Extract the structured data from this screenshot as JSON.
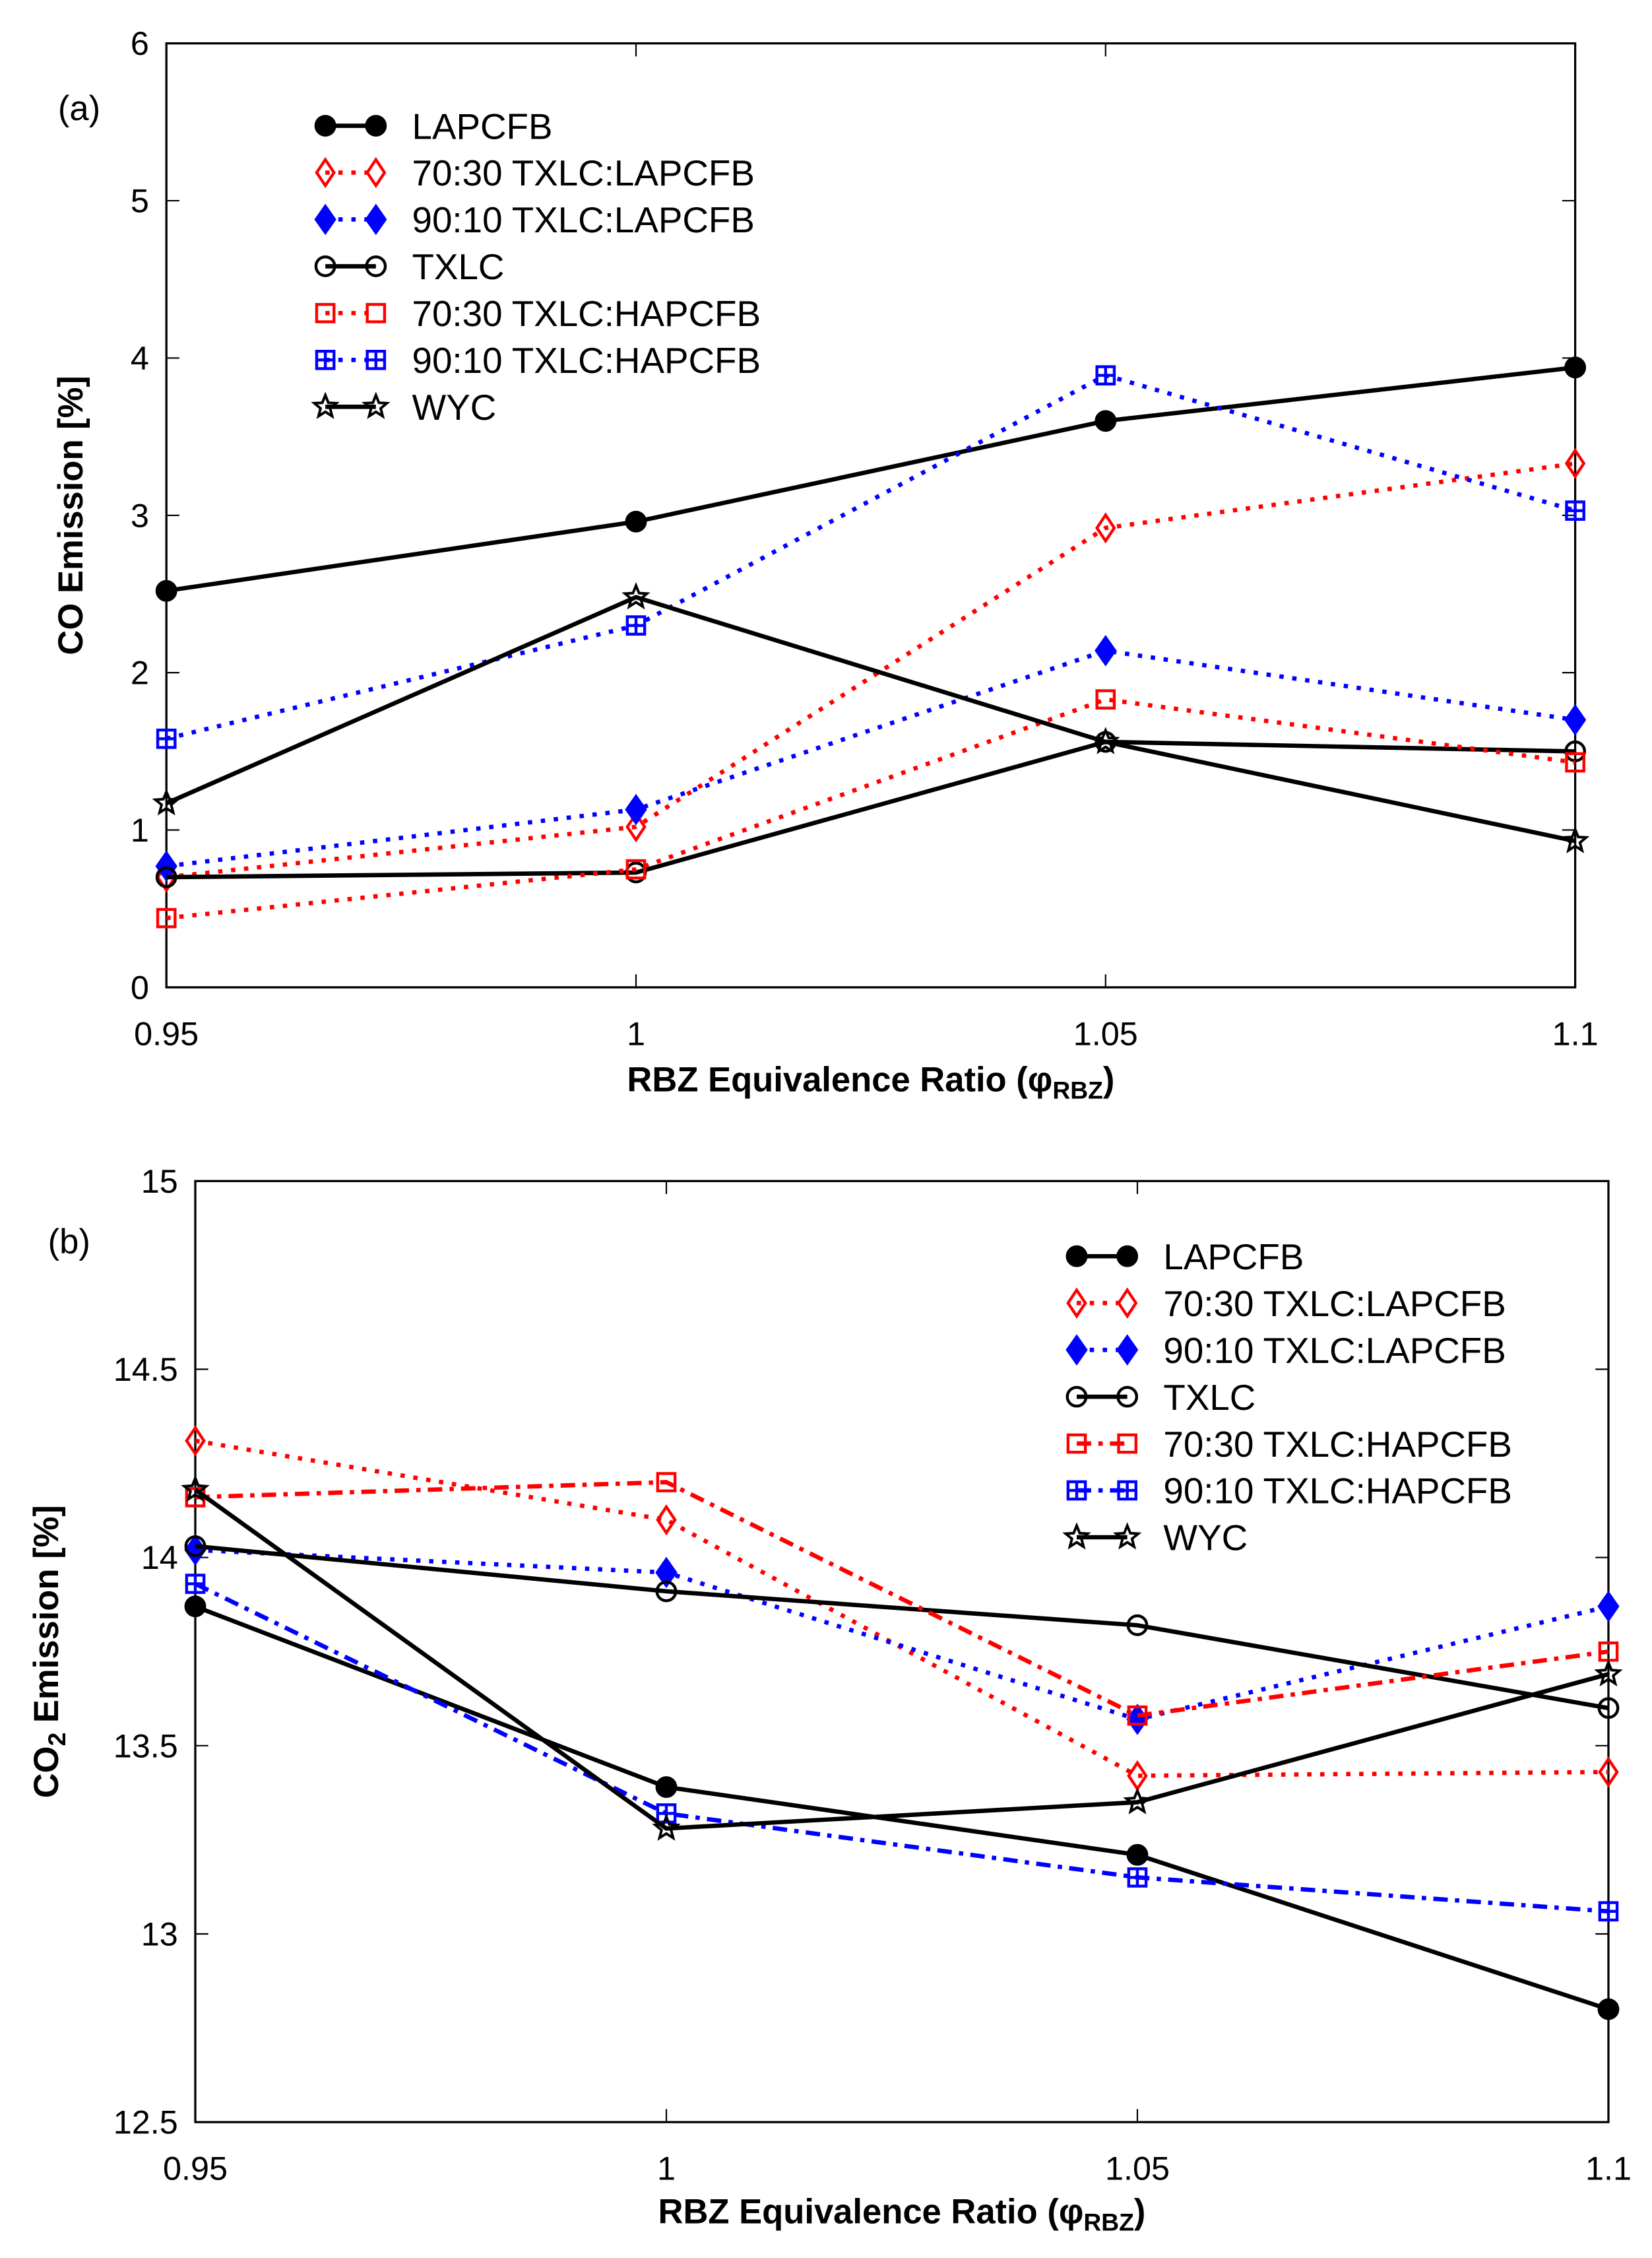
{
  "chart_data": [
    {
      "type": "line",
      "panel_label": "(a)",
      "xlabel": "RBZ Equivalence Ratio (φ",
      "xlabel_sub": "RBZ",
      "xlabel_end": ")",
      "ylabel": "CO Emission [%]",
      "x": [
        0.95,
        1,
        1.05,
        1.1
      ],
      "xlim": [
        0.95,
        1.1
      ],
      "ylim": [
        0,
        6
      ],
      "xticks": [
        "0.95",
        "1",
        "1.05",
        "1.1"
      ],
      "yticks": [
        "0",
        "1",
        "2",
        "3",
        "4",
        "5",
        "6"
      ],
      "legend_position": "top-left",
      "series": [
        {
          "name": "LAPCFB",
          "color": "#000000",
          "marker": "filled-circle",
          "line": "solid",
          "values": [
            2.52,
            2.96,
            3.6,
            3.94
          ]
        },
        {
          "name": "70:30 TXLC:LAPCFB",
          "color": "#ff0000",
          "marker": "open-diamond",
          "line": "dotted",
          "values": [
            0.7,
            1.02,
            2.92,
            3.33
          ]
        },
        {
          "name": "90:10 TXLC:LAPCFB",
          "color": "#0000ff",
          "marker": "filled-diamond",
          "line": "dotted",
          "values": [
            0.77,
            1.13,
            2.14,
            1.7
          ]
        },
        {
          "name": "TXLC",
          "color": "#000000",
          "marker": "open-circle",
          "line": "solid",
          "values": [
            0.7,
            0.73,
            1.56,
            1.5
          ]
        },
        {
          "name": "70:30 TXLC:HAPCFB",
          "color": "#ff0000",
          "marker": "open-square",
          "line": "dotted",
          "values": [
            0.44,
            0.75,
            1.83,
            1.43
          ]
        },
        {
          "name": "90:10 TXLC:HAPCFB",
          "color": "#0000ff",
          "marker": "boxed-plus",
          "line": "dotted",
          "values": [
            1.58,
            2.3,
            3.89,
            3.03
          ]
        },
        {
          "name": "WYC",
          "color": "#000000",
          "marker": "star",
          "line": "solid",
          "values": [
            1.17,
            2.48,
            1.56,
            0.93
          ]
        }
      ]
    },
    {
      "type": "line",
      "panel_label": "(b)",
      "xlabel": "RBZ Equivalence Ratio (φ",
      "xlabel_sub": "RBZ",
      "xlabel_end": ")",
      "ylabel": "CO",
      "ylabel_sub": "2",
      "ylabel_end": " Emission [%]",
      "x": [
        0.95,
        1,
        1.05,
        1.1
      ],
      "xlim": [
        0.95,
        1.1
      ],
      "ylim": [
        12.5,
        15
      ],
      "xticks": [
        "0.95",
        "1",
        "1.05",
        "1.1"
      ],
      "yticks": [
        "12.5",
        "13",
        "13.5",
        "14",
        "14.5",
        "15"
      ],
      "legend_position": "top-right",
      "series": [
        {
          "name": "LAPCFB",
          "color": "#000000",
          "marker": "filled-circle",
          "line": "solid",
          "values": [
            13.87,
            13.39,
            13.21,
            12.8
          ]
        },
        {
          "name": "70:30 TXLC:LAPCFB",
          "color": "#ff0000",
          "marker": "open-diamond",
          "line": "dotted",
          "values": [
            14.31,
            14.1,
            13.42,
            13.43
          ]
        },
        {
          "name": "90:10 TXLC:LAPCFB",
          "color": "#0000ff",
          "marker": "filled-diamond",
          "line": "dotted",
          "values": [
            14.02,
            13.96,
            13.57,
            13.87
          ]
        },
        {
          "name": "TXLC",
          "color": "#000000",
          "marker": "open-circle",
          "line": "solid",
          "values": [
            14.03,
            13.91,
            13.82,
            13.6
          ]
        },
        {
          "name": "70:30 TXLC:HAPCFB",
          "color": "#ff0000",
          "marker": "open-square",
          "line": "dashdot",
          "values": [
            14.16,
            14.2,
            13.58,
            13.75
          ]
        },
        {
          "name": "90:10 TXLC:HAPCFB",
          "color": "#0000ff",
          "marker": "boxed-plus",
          "line": "dashdot",
          "values": [
            13.93,
            13.32,
            13.15,
            13.06
          ]
        },
        {
          "name": "WYC",
          "color": "#000000",
          "marker": "star",
          "line": "solid",
          "values": [
            14.18,
            13.28,
            13.35,
            13.69
          ]
        }
      ]
    }
  ]
}
